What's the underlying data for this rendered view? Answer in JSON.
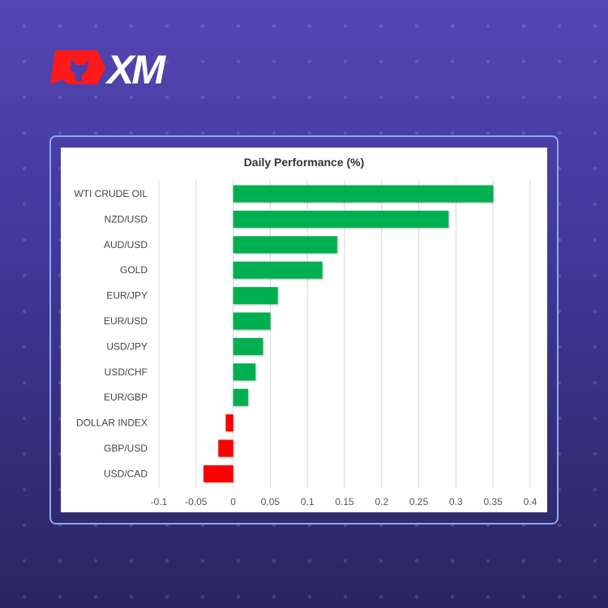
{
  "brand": {
    "logo_text": "XM",
    "accent": "#ff0000"
  },
  "chart_data": {
    "type": "bar",
    "orientation": "horizontal",
    "title": "Daily Performance (%)",
    "categories": [
      "WTI CRUDE OIL",
      "NZD/USD",
      "AUD/USD",
      "GOLD",
      "EUR/JPY",
      "EUR/USD",
      "USD/JPY",
      "USD/CHF",
      "EUR/GBP",
      "DOLLAR INDEX",
      "GBP/USD",
      "USD/CAD"
    ],
    "values": [
      0.35,
      0.29,
      0.14,
      0.12,
      0.06,
      0.05,
      0.04,
      0.03,
      0.02,
      -0.01,
      -0.02,
      -0.04
    ],
    "xlim": [
      -0.1,
      0.4
    ],
    "xticks": [
      "-0.1",
      "-0.05",
      "0",
      "0.05",
      "0.1",
      "0.15",
      "0.2",
      "0.25",
      "0.3",
      "0.35",
      "0.4"
    ],
    "grid": true,
    "colors": {
      "positive": "#00b050",
      "negative": "#ff0000"
    }
  }
}
